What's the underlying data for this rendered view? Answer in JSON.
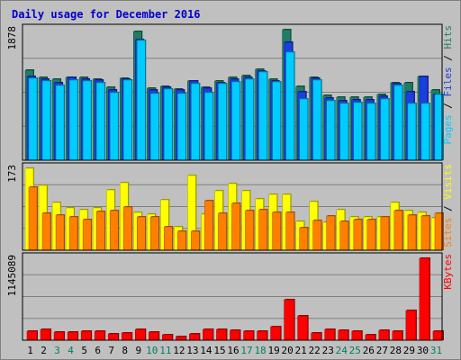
{
  "chart_data": {
    "type": "bar",
    "title": "Daily usage for December 2016",
    "x_labels": [
      "1",
      "2",
      "3",
      "4",
      "5",
      "6",
      "7",
      "8",
      "9",
      "10",
      "11",
      "12",
      "13",
      "14",
      "15",
      "16",
      "17",
      "18",
      "19",
      "20",
      "21",
      "22",
      "23",
      "24",
      "25",
      "26",
      "27",
      "28",
      "29",
      "30",
      "31"
    ],
    "weekend_days": [
      3,
      4,
      10,
      11,
      17,
      18,
      24,
      25,
      31
    ],
    "grid": true,
    "panels": [
      {
        "id": "pages-files-hits",
        "max_label": "1878",
        "ymax": 1878,
        "legend": [
          "Pages",
          "Files",
          "Hits"
        ],
        "series": [
          {
            "name": "Hits",
            "color": "#1f7d62",
            "values": [
              1290,
              1190,
              1170,
              1190,
              1190,
              1170,
              1050,
              1180,
              1850,
              1040,
              1060,
              1020,
              1140,
              1050,
              1140,
              1190,
              1220,
              1310,
              1160,
              1880,
              1060,
              1190,
              930,
              910,
              910,
              910,
              940,
              1120,
              1110,
              1200,
              1010
            ]
          },
          {
            "name": "Files",
            "color": "#1a3ee0",
            "values": [
              1200,
              1160,
              1120,
              1190,
              1160,
              1150,
              1010,
              1170,
              1730,
              1010,
              1050,
              1010,
              1140,
              1030,
              1110,
              1160,
              1190,
              1280,
              1140,
              1700,
              980,
              1180,
              900,
              860,
              870,
              870,
              920,
              1100,
              980,
              1200,
              950
            ]
          },
          {
            "name": "Pages",
            "color": "#00ccff",
            "values": [
              1180,
              1140,
              1080,
              1150,
              1140,
              1110,
              970,
              1150,
              1720,
              960,
              1020,
              960,
              1100,
              970,
              1100,
              1130,
              1170,
              1270,
              1130,
              1560,
              880,
              1150,
              860,
              820,
              830,
              820,
              880,
              1080,
              820,
              820,
              940
            ]
          }
        ]
      },
      {
        "id": "sites-visits",
        "max_label": "173",
        "ymax": 173,
        "legend": [
          "Sites",
          "Visits"
        ],
        "series": [
          {
            "name": "Visits",
            "color": "#ffff00",
            "values": [
              173,
              137,
              100,
              90,
              85,
              90,
              128,
              142,
              80,
              76,
              106,
              50,
              158,
              76,
              125,
              140,
              126,
              108,
              118,
              118,
              60,
              103,
              58,
              85,
              70,
              70,
              70,
              100,
              83,
              80,
              68
            ]
          },
          {
            "name": "Sites",
            "color": "#ff8000",
            "values": [
              133,
              77,
              75,
              70,
              65,
              82,
              83,
              91,
              70,
              71,
              50,
              40,
              40,
              105,
              78,
              98,
              84,
              85,
              80,
              80,
              48,
              63,
              72,
              61,
              64,
              65,
              70,
              83,
              75,
              73,
              77
            ]
          }
        ]
      },
      {
        "id": "kbytes",
        "max_label": "1145089",
        "ymax": 1145089,
        "legend": [
          "KBytes"
        ],
        "series": [
          {
            "name": "KBytes",
            "color": "#ff0000",
            "values": [
              130000,
              150000,
              110000,
              110000,
              120000,
              120000,
              90000,
              100000,
              150000,
              110000,
              70000,
              50000,
              90000,
              150000,
              150000,
              140000,
              130000,
              120000,
              190000,
              570000,
              340000,
              100000,
              150000,
              140000,
              120000,
              70000,
              140000,
              120000,
              410000,
              1140000,
              130000
            ]
          }
        ]
      }
    ]
  }
}
